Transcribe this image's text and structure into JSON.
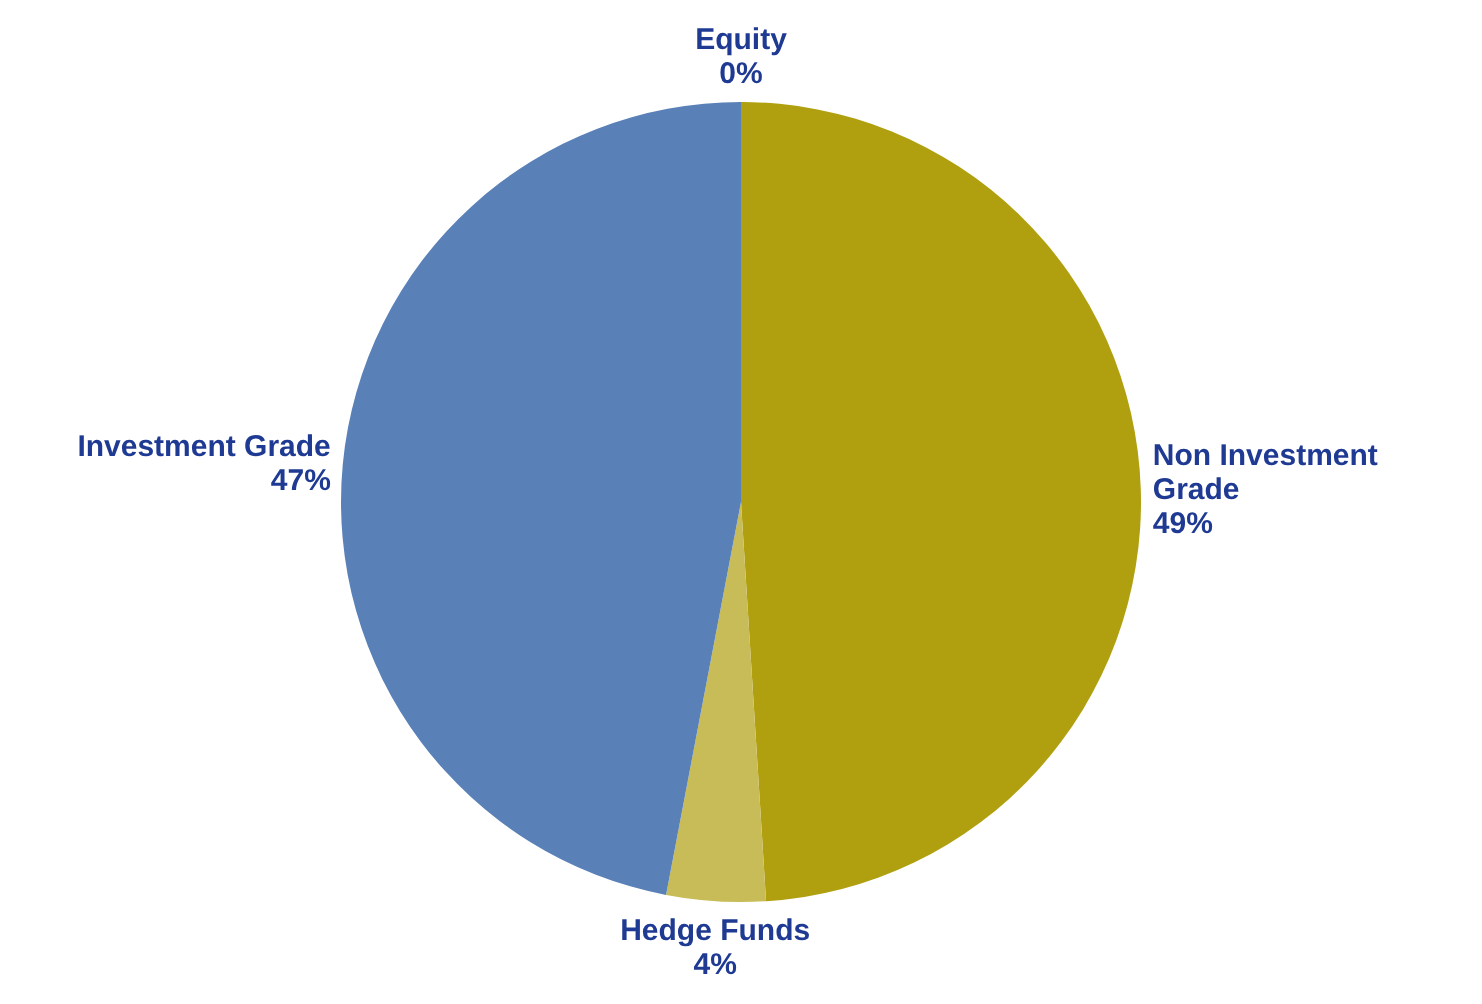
{
  "chart_data": {
    "type": "pie",
    "categories": [
      "Equity",
      "Non Investment Grade",
      "Hedge Funds",
      "Investment Grade"
    ],
    "values": [
      0,
      49,
      4,
      47
    ],
    "colors": [
      "#8c8c8c",
      "#b0a010",
      "#c8bc58",
      "#5a80b8"
    ],
    "value_labels": [
      "0%",
      "49%",
      "4%",
      "47%"
    ]
  }
}
